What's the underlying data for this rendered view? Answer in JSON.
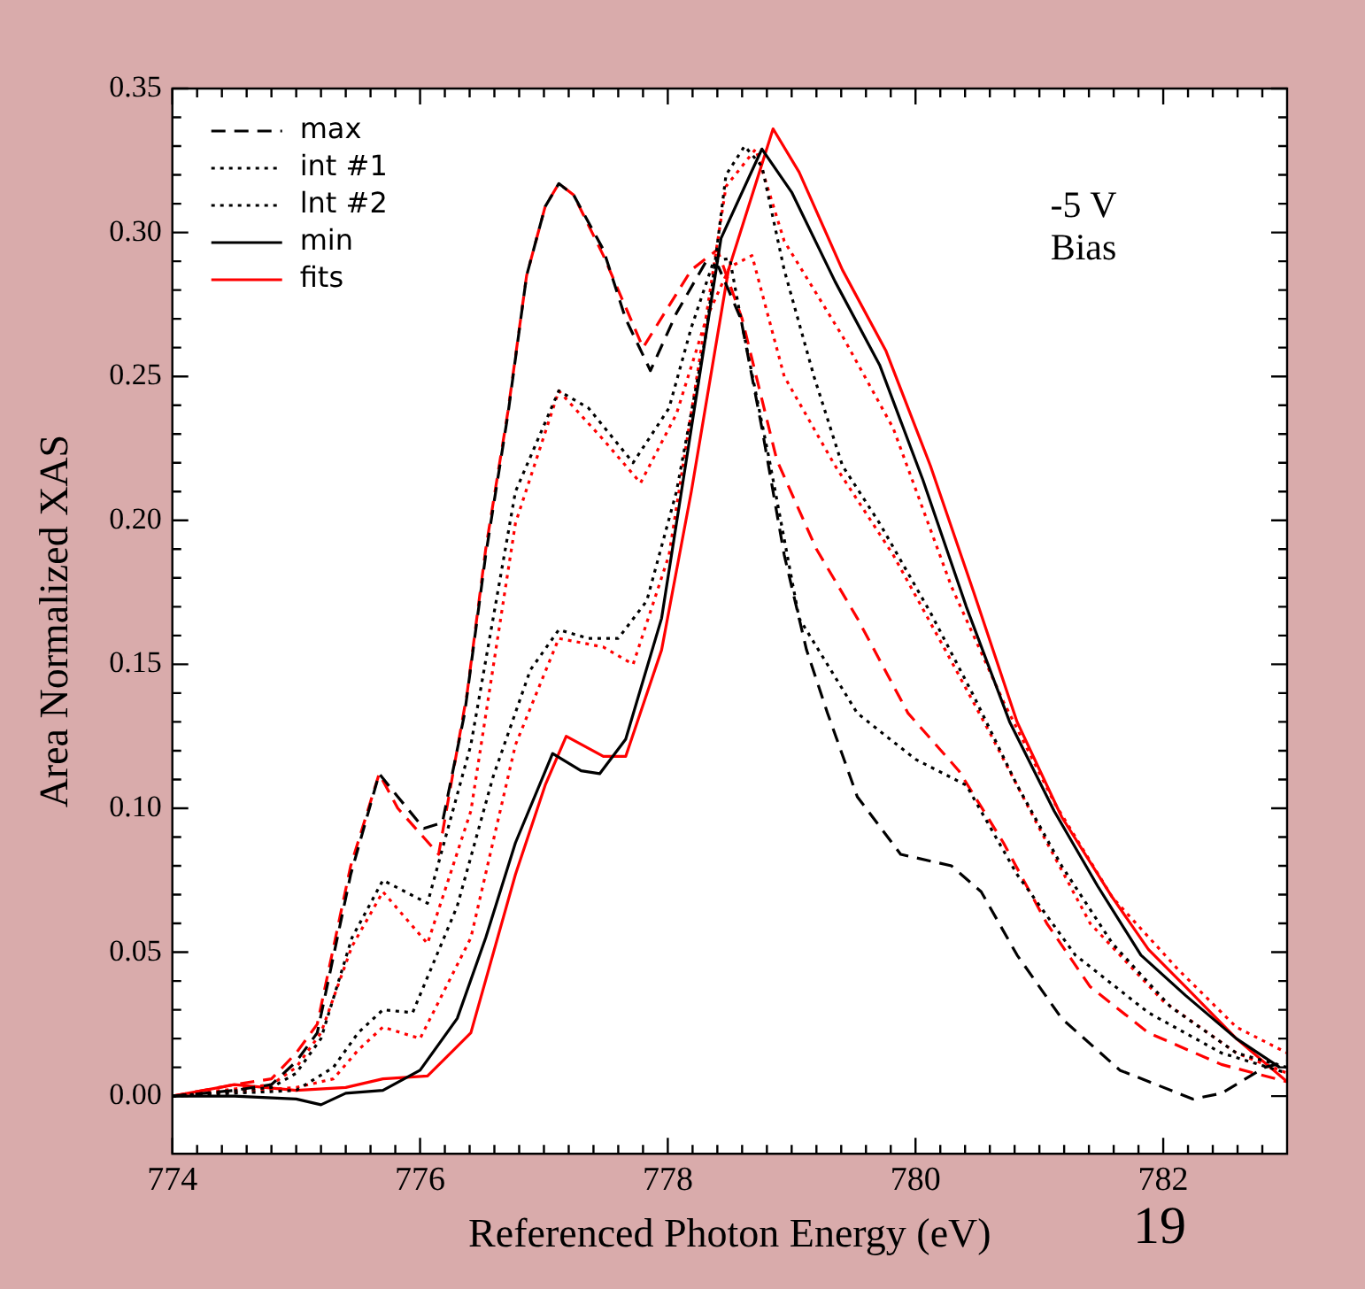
{
  "chart_data": {
    "type": "line",
    "xlabel": "Referenced Photon Energy (eV)",
    "ylabel": "Area Normalized XAS",
    "annotations": [
      "-5 V\nBias",
      "19"
    ],
    "legend": "top left",
    "grid": false,
    "xlim": [
      774,
      783
    ],
    "ylim": [
      -0.02,
      0.35
    ],
    "xticks": [
      774,
      {
        "value": 774.2,
        "label": null
      },
      {
        "value": 774.4,
        "label": null
      },
      {
        "value": 774.6,
        "label": null
      },
      {
        "value": 774.8,
        "label": null
      },
      {
        "value": 775,
        "label": null
      },
      {
        "value": 775.2,
        "label": null
      },
      {
        "value": 775.4,
        "label": null
      },
      {
        "value": 775.6,
        "label": null
      },
      {
        "value": 775.8,
        "label": null
      },
      776,
      {
        "value": 776.2,
        "label": null
      },
      {
        "value": 776.4,
        "label": null
      },
      {
        "value": 776.6,
        "label": null
      },
      {
        "value": 776.8,
        "label": null
      },
      {
        "value": 777,
        "label": null
      },
      {
        "value": 777.2,
        "label": null
      },
      {
        "value": 777.4,
        "label": null
      },
      {
        "value": 777.6,
        "label": null
      },
      {
        "value": 777.8,
        "label": null
      },
      778,
      {
        "value": 778.2,
        "label": null
      },
      {
        "value": 778.4,
        "label": null
      },
      {
        "value": 778.6,
        "label": null
      },
      {
        "value": 778.8,
        "label": null
      },
      {
        "value": 779,
        "label": null
      },
      {
        "value": 779.2,
        "label": null
      },
      {
        "value": 779.4,
        "label": null
      },
      {
        "value": 779.6,
        "label": null
      },
      {
        "value": 779.8,
        "label": null
      },
      780,
      {
        "value": 780.2,
        "label": null
      },
      {
        "value": 780.4,
        "label": null
      },
      {
        "value": 780.6,
        "label": null
      },
      {
        "value": 780.8,
        "label": null
      },
      {
        "value": 781,
        "label": null
      },
      {
        "value": 781.2,
        "label": null
      },
      {
        "value": 781.4,
        "label": null
      },
      {
        "value": 781.6,
        "label": null
      },
      {
        "value": 781.8,
        "label": null
      },
      782,
      {
        "value": 782.2,
        "label": null
      },
      {
        "value": 782.4,
        "label": null
      },
      {
        "value": 782.6,
        "label": null
      },
      {
        "value": 782.8,
        "label": null
      }
    ],
    "yticks": [
      {
        "value": 0,
        "label": "0.00"
      },
      {
        "value": 0.01,
        "label": null
      },
      {
        "value": 0.02,
        "label": null
      },
      {
        "value": 0.03,
        "label": null
      },
      {
        "value": 0.04,
        "label": null
      },
      {
        "value": 0.05,
        "label": "0.05"
      },
      {
        "value": 0.06,
        "label": null
      },
      {
        "value": 0.07,
        "label": null
      },
      {
        "value": 0.08,
        "label": null
      },
      {
        "value": 0.09,
        "label": null
      },
      {
        "value": 0.1,
        "label": "0.10"
      },
      {
        "value": 0.11,
        "label": null
      },
      {
        "value": 0.12,
        "label": null
      },
      {
        "value": 0.13,
        "label": null
      },
      {
        "value": 0.14,
        "label": null
      },
      {
        "value": 0.15,
        "label": "0.15"
      },
      {
        "value": 0.16,
        "label": null
      },
      {
        "value": 0.17,
        "label": null
      },
      {
        "value": 0.18,
        "label": null
      },
      {
        "value": 0.19,
        "label": null
      },
      {
        "value": 0.2,
        "label": "0.20"
      },
      {
        "value": 0.21,
        "label": null
      },
      {
        "value": 0.22,
        "label": null
      },
      {
        "value": 0.23,
        "label": null
      },
      {
        "value": 0.24,
        "label": null
      },
      {
        "value": 0.25,
        "label": "0.25"
      },
      {
        "value": 0.26,
        "label": null
      },
      {
        "value": 0.27,
        "label": null
      },
      {
        "value": 0.28,
        "label": null
      },
      {
        "value": 0.29,
        "label": null
      },
      {
        "value": 0.3,
        "label": "0.30"
      },
      {
        "value": 0.31,
        "label": null
      },
      {
        "value": 0.32,
        "label": null
      },
      {
        "value": 0.33,
        "label": null
      },
      {
        "value": 0.34,
        "label": null
      },
      {
        "value": 0.35,
        "label": "0.35"
      }
    ],
    "series": [
      {
        "name": "max",
        "color": "#000000",
        "line_style": "dashed",
        "x": [
          774,
          774.5,
          774.8,
          775.0,
          775.17,
          775.44,
          775.67,
          775.82,
          776.03,
          776.18,
          776.36,
          776.53,
          776.71,
          776.86,
          777.01,
          777.12,
          777.24,
          777.48,
          777.66,
          777.86,
          778.07,
          778.31,
          778.41,
          778.59,
          778.76,
          778.94,
          779.12,
          779.29,
          779.53,
          779.88,
          780.29,
          780.53,
          780.82,
          781.18,
          781.65,
          782.24,
          782.47,
          782.82,
          783
        ],
        "values": [
          0,
          0.002,
          0.004,
          0.012,
          0.022,
          0.077,
          0.112,
          0.104,
          0.093,
          0.095,
          0.133,
          0.188,
          0.237,
          0.285,
          0.309,
          0.317,
          0.313,
          0.294,
          0.27,
          0.252,
          0.272,
          0.29,
          0.288,
          0.27,
          0.232,
          0.188,
          0.155,
          0.133,
          0.104,
          0.084,
          0.08,
          0.071,
          0.049,
          0.027,
          0.009,
          -0.001,
          0.001,
          0.01,
          0.012
        ]
      },
      {
        "name": "int #1",
        "color": "#000000",
        "line_style": "dotted",
        "x": [
          774,
          774.8,
          775.0,
          775.2,
          775.45,
          775.7,
          776.06,
          776.41,
          776.77,
          777.12,
          777.36,
          777.72,
          778.01,
          778.19,
          778.37,
          778.5,
          778.59,
          778.82,
          779.06,
          779.53,
          780.0,
          780.41,
          780.82,
          781.29,
          781.88,
          782.47,
          783
        ],
        "values": [
          0,
          0.003,
          0.008,
          0.02,
          0.055,
          0.075,
          0.067,
          0.122,
          0.21,
          0.245,
          0.239,
          0.22,
          0.239,
          0.267,
          0.29,
          0.291,
          0.27,
          0.221,
          0.166,
          0.133,
          0.117,
          0.108,
          0.077,
          0.049,
          0.029,
          0.015,
          0.008
        ]
      },
      {
        "name": "lnt #2",
        "color": "#000000",
        "line_style": "dotted",
        "x": [
          774,
          775.0,
          775.3,
          775.5,
          775.7,
          775.94,
          776.3,
          776.59,
          776.89,
          777.12,
          777.36,
          777.6,
          777.83,
          778.07,
          778.31,
          778.47,
          778.62,
          778.76,
          778.94,
          779.18,
          779.41,
          779.71,
          780.12,
          780.47,
          780.82,
          781.18,
          781.59,
          782.06,
          782.59,
          783
        ],
        "values": [
          0,
          0.002,
          0.01,
          0.022,
          0.03,
          0.029,
          0.066,
          0.111,
          0.148,
          0.162,
          0.159,
          0.159,
          0.172,
          0.21,
          0.265,
          0.32,
          0.33,
          0.323,
          0.287,
          0.25,
          0.219,
          0.199,
          0.168,
          0.139,
          0.108,
          0.08,
          0.053,
          0.031,
          0.015,
          0.01
        ]
      },
      {
        "name": "min",
        "color": "#000000",
        "line_style": "solid",
        "x": [
          774,
          774.5,
          775.0,
          775.2,
          775.4,
          775.7,
          776.0,
          776.3,
          776.53,
          776.77,
          777.07,
          777.3,
          777.45,
          777.66,
          777.95,
          778.19,
          778.43,
          778.76,
          779.0,
          779.35,
          779.71,
          780.06,
          780.41,
          780.76,
          781.12,
          781.47,
          781.82,
          782.18,
          782.59,
          782.94
        ],
        "values": [
          0,
          0,
          -0.001,
          -0.003,
          0.001,
          0.002,
          0.009,
          0.027,
          0.055,
          0.088,
          0.119,
          0.113,
          0.112,
          0.124,
          0.166,
          0.232,
          0.298,
          0.329,
          0.314,
          0.283,
          0.254,
          0.214,
          0.17,
          0.13,
          0.099,
          0.073,
          0.049,
          0.035,
          0.02,
          0.01
        ]
      },
      {
        "name": "fits",
        "color": "#ff0000",
        "line_style": "solid",
        "x": [
          774,
          774.5,
          775.0,
          775.4,
          775.7,
          776.06,
          776.41,
          776.77,
          777.01,
          777.18,
          777.48,
          777.66,
          777.95,
          778.19,
          778.49,
          778.85,
          779.06,
          779.41,
          779.76,
          780.12,
          780.47,
          780.82,
          781.18,
          781.59,
          781.88,
          782.18,
          782.59,
          783
        ],
        "values": [
          0,
          0.004,
          0.002,
          0.003,
          0.006,
          0.007,
          0.022,
          0.077,
          0.108,
          0.125,
          0.118,
          0.118,
          0.155,
          0.21,
          0.287,
          0.336,
          0.321,
          0.287,
          0.259,
          0.219,
          0.175,
          0.13,
          0.097,
          0.069,
          0.051,
          0.038,
          0.02,
          0.005
        ]
      },
      {
        "color": "#ff0000",
        "line_style": "dashed",
        "x": [
          774,
          774.5,
          774.8,
          775.0,
          775.17,
          775.44,
          775.67,
          775.82,
          776.15,
          776.38,
          776.53,
          776.71,
          776.86,
          777.01,
          777.12,
          777.24,
          777.48,
          777.8,
          778.19,
          778.4,
          778.6,
          778.88,
          779.2,
          779.53,
          779.94,
          780.35,
          780.71,
          781.06,
          781.41,
          781.88,
          782.47,
          783
        ],
        "values": [
          0,
          0.004,
          0.006,
          0.015,
          0.025,
          0.08,
          0.112,
          0.1,
          0.084,
          0.14,
          0.19,
          0.238,
          0.285,
          0.309,
          0.317,
          0.313,
          0.292,
          0.26,
          0.287,
          0.294,
          0.27,
          0.221,
          0.19,
          0.166,
          0.133,
          0.113,
          0.088,
          0.06,
          0.038,
          0.022,
          0.011,
          0.005
        ]
      },
      {
        "color": "#ff0000",
        "line_style": "dotted",
        "x": [
          774,
          774.8,
          775.0,
          775.2,
          775.45,
          775.7,
          776.06,
          776.41,
          776.77,
          777.12,
          777.48,
          777.78,
          778.07,
          778.31,
          778.5,
          778.68,
          778.94,
          779.35,
          779.82,
          780.24,
          780.59,
          781.0,
          781.41,
          782.0,
          782.59,
          783
        ],
        "values": [
          0,
          0.004,
          0.01,
          0.022,
          0.052,
          0.071,
          0.053,
          0.099,
          0.199,
          0.245,
          0.228,
          0.213,
          0.237,
          0.27,
          0.288,
          0.292,
          0.25,
          0.219,
          0.188,
          0.155,
          0.127,
          0.093,
          0.06,
          0.033,
          0.015,
          0.008
        ]
      },
      {
        "color": "#ff0000",
        "line_style": "dotted",
        "x": [
          774,
          775.0,
          775.3,
          775.5,
          775.7,
          776.0,
          776.41,
          776.77,
          777.12,
          777.48,
          777.72,
          778.01,
          778.25,
          778.47,
          778.71,
          778.94,
          779.41,
          779.82,
          780.29,
          780.71,
          781.12,
          781.59,
          782.12,
          782.59,
          783
        ],
        "values": [
          0,
          0.003,
          0.006,
          0.016,
          0.024,
          0.02,
          0.055,
          0.122,
          0.159,
          0.156,
          0.15,
          0.188,
          0.254,
          0.316,
          0.329,
          0.297,
          0.264,
          0.232,
          0.177,
          0.137,
          0.102,
          0.069,
          0.044,
          0.024,
          0.015
        ]
      }
    ]
  }
}
